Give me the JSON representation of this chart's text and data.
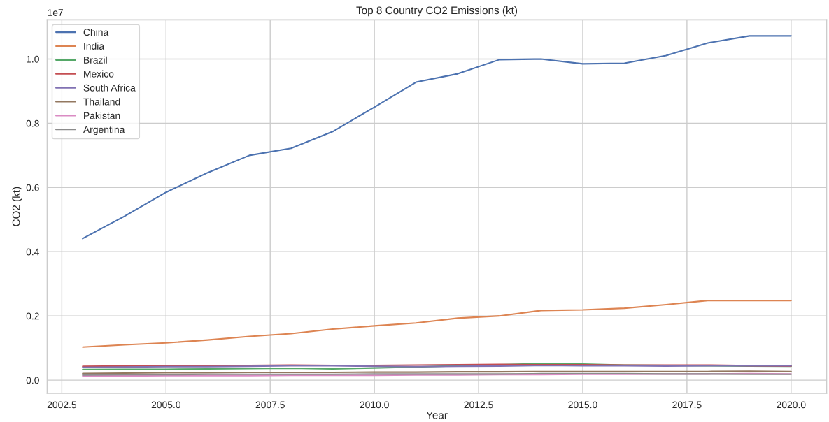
{
  "chart_data": {
    "type": "line",
    "title": "Top 8 Country CO2 Emissions (kt)",
    "xlabel": "Year",
    "ylabel": "CO2 (kt)",
    "x": [
      2003,
      2004,
      2005,
      2006,
      2007,
      2008,
      2009,
      2010,
      2011,
      2012,
      2013,
      2014,
      2015,
      2016,
      2017,
      2018,
      2019,
      2020
    ],
    "series": [
      {
        "name": "China",
        "color": "#4c72b0",
        "values": [
          0.441,
          0.51,
          0.585,
          0.646,
          0.7,
          0.722,
          0.774,
          0.85,
          0.928,
          0.954,
          0.998,
          1.0,
          0.985,
          0.987,
          1.011,
          1.05,
          1.072,
          1.072
        ]
      },
      {
        "name": "India",
        "color": "#dd8452",
        "values": [
          0.103,
          0.11,
          0.116,
          0.125,
          0.136,
          0.145,
          0.159,
          0.169,
          0.178,
          0.193,
          0.2,
          0.217,
          0.219,
          0.224,
          0.235,
          0.248,
          0.248,
          0.248
        ]
      },
      {
        "name": "Brazil",
        "color": "#55a868",
        "values": [
          0.033,
          0.034,
          0.034,
          0.035,
          0.036,
          0.037,
          0.035,
          0.038,
          0.041,
          0.045,
          0.048,
          0.052,
          0.05,
          0.047,
          0.046,
          0.045,
          0.044,
          0.043
        ]
      },
      {
        "name": "Mexico",
        "color": "#c44e52",
        "values": [
          0.043,
          0.044,
          0.045,
          0.046,
          0.046,
          0.047,
          0.046,
          0.046,
          0.047,
          0.048,
          0.049,
          0.048,
          0.048,
          0.047,
          0.047,
          0.047,
          0.045,
          0.044
        ]
      },
      {
        "name": "South Africa",
        "color": "#8172b3",
        "values": [
          0.04,
          0.041,
          0.042,
          0.042,
          0.043,
          0.045,
          0.045,
          0.043,
          0.042,
          0.043,
          0.044,
          0.046,
          0.045,
          0.045,
          0.044,
          0.045,
          0.045,
          0.045
        ]
      },
      {
        "name": "Thailand",
        "color": "#937860",
        "values": [
          0.021,
          0.022,
          0.023,
          0.023,
          0.024,
          0.024,
          0.024,
          0.025,
          0.025,
          0.026,
          0.026,
          0.027,
          0.027,
          0.027,
          0.027,
          0.027,
          0.028,
          0.027
        ]
      },
      {
        "name": "Pakistan",
        "color": "#da8bc3",
        "values": [
          0.013,
          0.013,
          0.014,
          0.014,
          0.014,
          0.015,
          0.015,
          0.015,
          0.016,
          0.016,
          0.017,
          0.017,
          0.018,
          0.018,
          0.019,
          0.019,
          0.02,
          0.019
        ]
      },
      {
        "name": "Argentina",
        "color": "#8c8c8c",
        "values": [
          0.016,
          0.017,
          0.017,
          0.018,
          0.018,
          0.018,
          0.018,
          0.019,
          0.019,
          0.019,
          0.019,
          0.02,
          0.02,
          0.02,
          0.019,
          0.019,
          0.018,
          0.018
        ]
      }
    ],
    "xlim": [
      2002.15,
      2020.85
    ],
    "ylim": [
      -0.041,
      1.122
    ],
    "xticks": [
      {
        "value": 2002.5,
        "label": "2002.5"
      },
      {
        "value": 2005,
        "label": "2005.0"
      },
      {
        "value": 2007.5,
        "label": "2007.5"
      },
      {
        "value": 2010,
        "label": "2010.0"
      },
      {
        "value": 2012.5,
        "label": "2012.5"
      },
      {
        "value": 2015,
        "label": "2015.0"
      },
      {
        "value": 2017.5,
        "label": "2017.5"
      },
      {
        "value": 2020,
        "label": "2020.0"
      }
    ],
    "yticks": [
      {
        "value": 0,
        "label": "0.0"
      },
      0.2,
      0.4,
      0.6,
      0.8,
      {
        "value": 1,
        "label": "1.0"
      }
    ],
    "annotations": [
      "1e7"
    ],
    "grid": true,
    "legend": "top left",
    "line_style": "solid",
    "marker": "none"
  }
}
